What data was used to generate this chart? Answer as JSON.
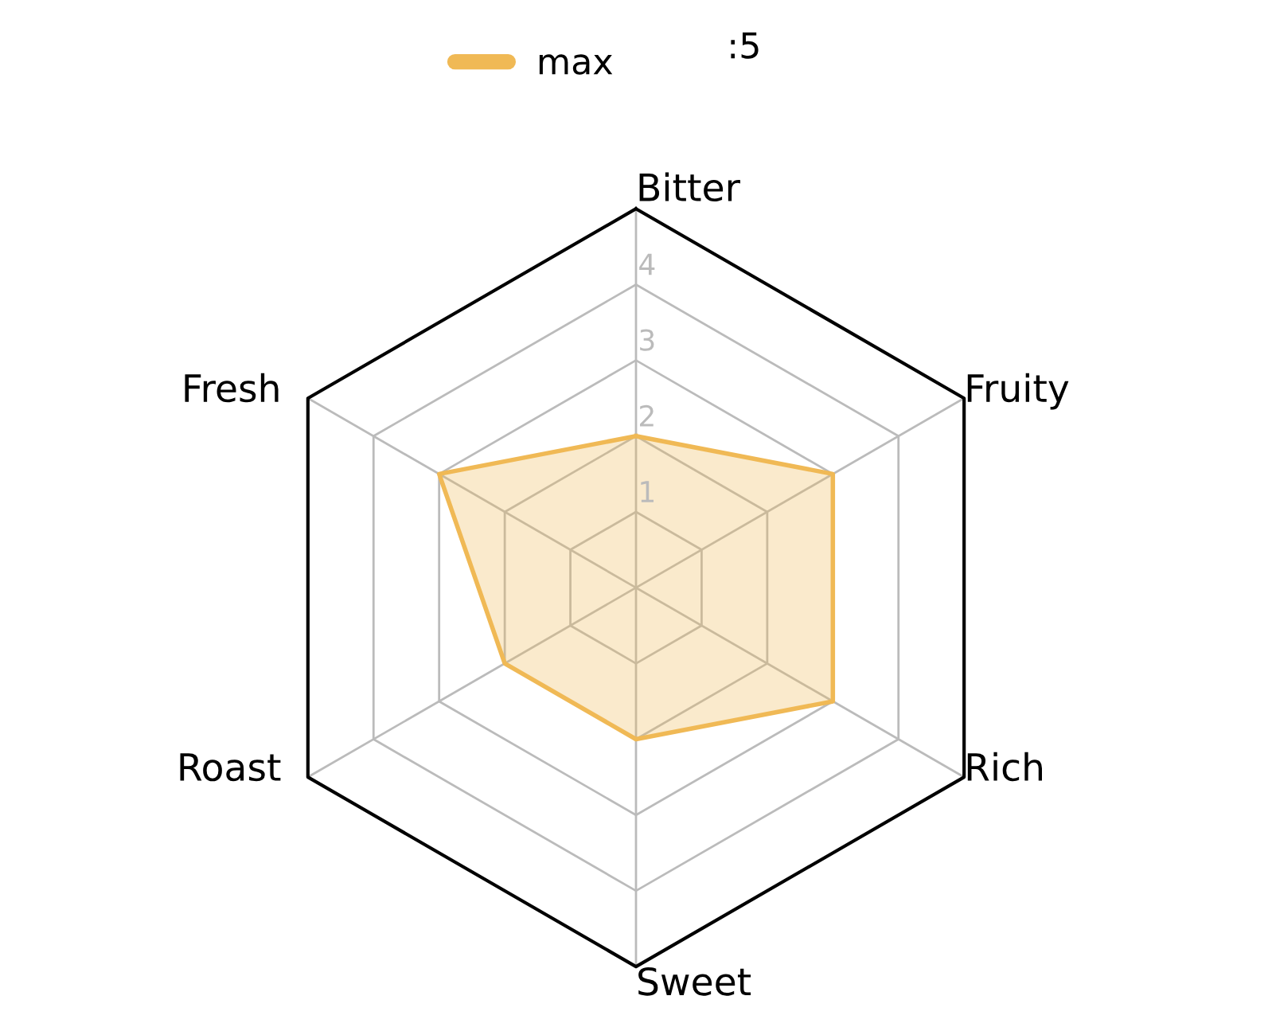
{
  "chart_data": {
    "type": "radar",
    "categories": [
      "Bitter",
      "Fruity",
      "Rich",
      "Sweet",
      "Roast",
      "Fresh"
    ],
    "series": [
      {
        "name": "max",
        "color": "#f0b955",
        "values": [
          2,
          3,
          3,
          2,
          2,
          3
        ]
      }
    ],
    "ylim": [
      0,
      5
    ],
    "yticks": [
      1,
      2,
      3,
      4
    ],
    "grid": true,
    "legend": "top",
    "marker": "none",
    "line_style": "solid",
    "annotations": [
      ":5"
    ]
  }
}
